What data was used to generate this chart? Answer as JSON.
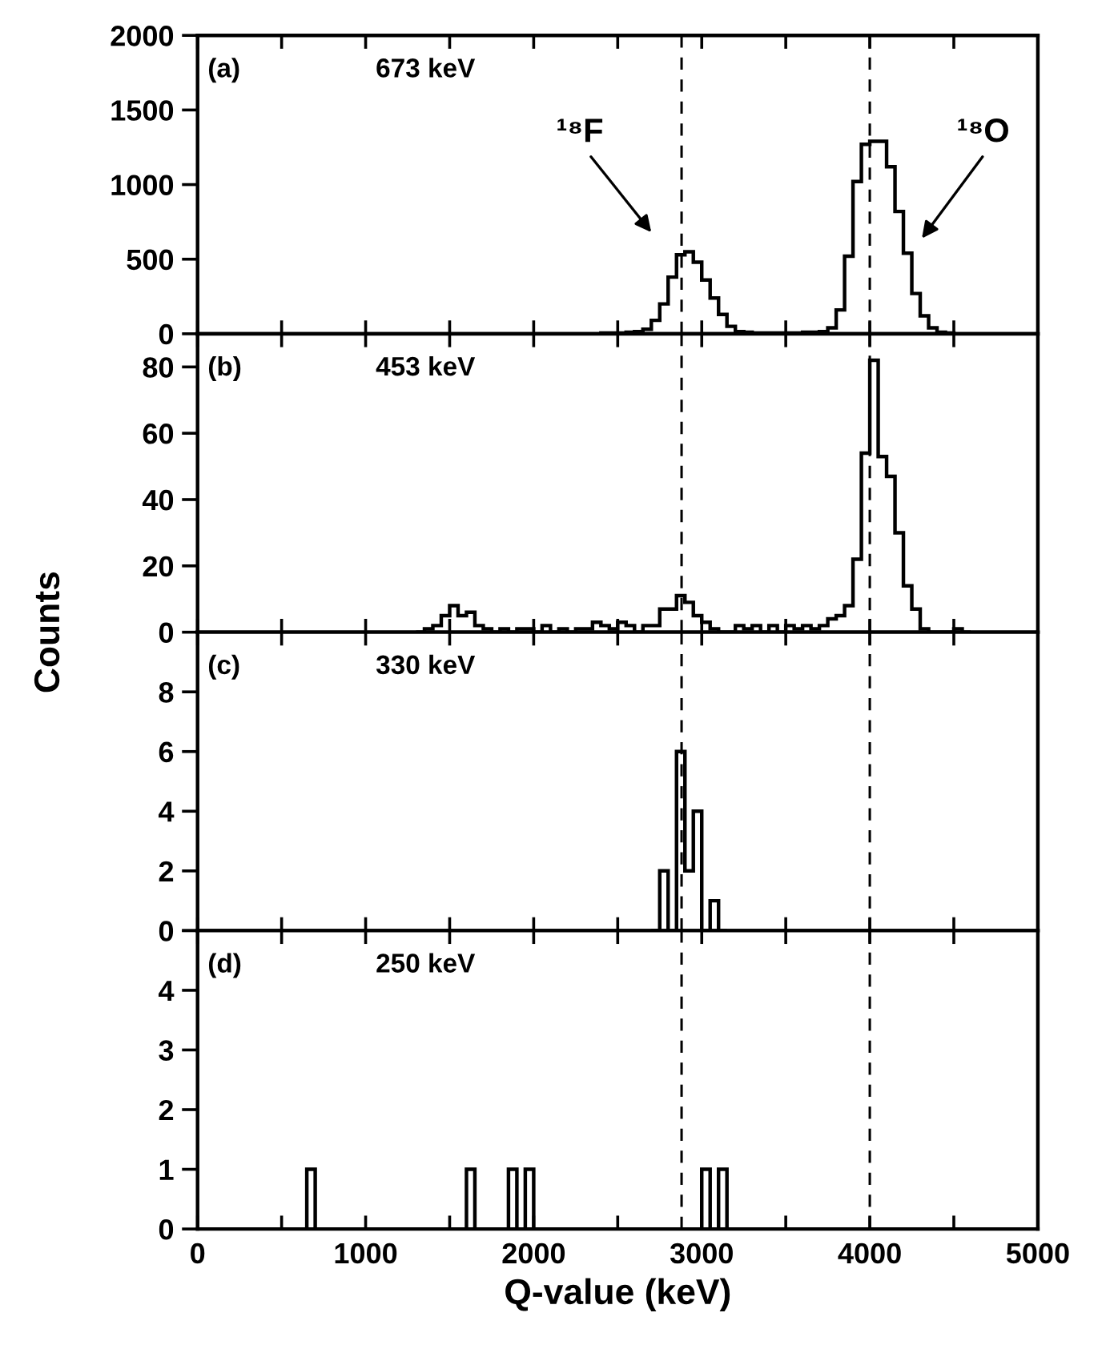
{
  "chart_data": [
    {
      "type": "histogram",
      "annotations": [
        "(a)",
        "673 keV",
        "¹⁸F",
        "¹⁸O"
      ],
      "bins": [
        2400,
        2450,
        2500,
        2550,
        2600,
        2650,
        2700,
        2750,
        2800,
        2850,
        2900,
        2950,
        3000,
        3050,
        3100,
        3150,
        3200,
        3250,
        3300,
        3350,
        3400,
        3450,
        3500,
        3550,
        3600,
        3650,
        3700,
        3750,
        3800,
        3850,
        3900,
        3950,
        4000,
        4050,
        4100,
        4150,
        4200,
        4250,
        4300,
        4350,
        4400,
        4450,
        4500
      ],
      "values": [
        5,
        5,
        5,
        10,
        15,
        30,
        90,
        200,
        380,
        530,
        550,
        480,
        360,
        240,
        130,
        50,
        15,
        10,
        5,
        5,
        5,
        5,
        5,
        5,
        10,
        10,
        15,
        40,
        160,
        520,
        1020,
        1270,
        1290,
        1290,
        1120,
        820,
        540,
        270,
        120,
        40,
        10,
        5
      ],
      "color": "#000000",
      "xlim": [
        0,
        5000
      ],
      "xticks": [
        0,
        {
          "value": 500,
          "label": null
        },
        1000,
        {
          "value": 1500,
          "label": null
        },
        2000,
        {
          "value": 2500,
          "label": null
        },
        3000,
        {
          "value": 3500,
          "label": null
        },
        4000,
        {
          "value": 4500,
          "label": null
        },
        5000
      ],
      "ylim": [
        0,
        2000
      ],
      "yticks": [
        0,
        500,
        1000,
        1500,
        2000
      ],
      "tick_labels": "y",
      "ref_lines": [
        {
          "axis": "x",
          "value": 2880,
          "line_style": "dashed"
        },
        {
          "axis": "x",
          "value": 4000,
          "line_style": "dashed"
        }
      ]
    },
    {
      "type": "histogram",
      "annotations": [
        "(b)",
        "453 keV"
      ],
      "bins": [
        1300,
        1350,
        1400,
        1450,
        1500,
        1550,
        1600,
        1650,
        1700,
        1750,
        1800,
        1850,
        1900,
        1950,
        2000,
        2050,
        2100,
        2150,
        2200,
        2250,
        2300,
        2350,
        2400,
        2450,
        2500,
        2550,
        2600,
        2650,
        2700,
        2750,
        2800,
        2850,
        2900,
        2950,
        3000,
        3050,
        3100,
        3150,
        3200,
        3250,
        3300,
        3350,
        3400,
        3450,
        3500,
        3550,
        3600,
        3650,
        3700,
        3750,
        3800,
        3850,
        3900,
        3950,
        4000,
        4050,
        4100,
        4150,
        4200,
        4250,
        4300,
        4350,
        4400,
        4450,
        4500,
        4550,
        4600
      ],
      "values": [
        0,
        1,
        2,
        5,
        8,
        5,
        6,
        2,
        1,
        0,
        1,
        0,
        1,
        1,
        0,
        2,
        0,
        1,
        0,
        1,
        1,
        3,
        2,
        1,
        3,
        2,
        0,
        2,
        2,
        7,
        7,
        11,
        9,
        5,
        3,
        1,
        0,
        0,
        2,
        1,
        2,
        0,
        2,
        0,
        2,
        1,
        2,
        1,
        2,
        4,
        5,
        8,
        22,
        54,
        82,
        53,
        47,
        30,
        14,
        7,
        1,
        0,
        0,
        0,
        1,
        0
      ],
      "color": "#000000",
      "xlim": [
        0,
        5000
      ],
      "xticks": [
        0,
        {
          "value": 500,
          "label": null
        },
        1000,
        {
          "value": 1500,
          "label": null
        },
        2000,
        {
          "value": 2500,
          "label": null
        },
        3000,
        {
          "value": 3500,
          "label": null
        },
        4000,
        {
          "value": 4500,
          "label": null
        },
        5000
      ],
      "ylim": [
        0,
        90
      ],
      "yticks": [
        0,
        20,
        40,
        60,
        80
      ],
      "tick_labels": "y",
      "ref_lines": [
        {
          "axis": "x",
          "value": 2880,
          "line_style": "dashed"
        },
        {
          "axis": "x",
          "value": 4000,
          "line_style": "dashed"
        }
      ]
    },
    {
      "type": "histogram",
      "ylabel": "Counts",
      "annotations": [
        "(c)",
        "330 keV"
      ],
      "bins": [
        2700,
        2750,
        2800,
        2850,
        2900,
        2950,
        3000,
        3050,
        3100,
        3150
      ],
      "values": [
        0,
        2,
        0,
        6,
        2,
        4,
        0,
        1,
        0
      ],
      "color": "#000000",
      "xlim": [
        0,
        5000
      ],
      "xticks": [
        0,
        {
          "value": 500,
          "label": null
        },
        1000,
        {
          "value": 1500,
          "label": null
        },
        2000,
        {
          "value": 2500,
          "label": null
        },
        3000,
        {
          "value": 3500,
          "label": null
        },
        4000,
        {
          "value": 4500,
          "label": null
        },
        5000
      ],
      "ylim": [
        0,
        10
      ],
      "yticks": [
        0,
        2,
        4,
        6,
        8
      ],
      "tick_labels": "y",
      "ref_lines": [
        {
          "axis": "x",
          "value": 2880,
          "line_style": "dashed"
        },
        {
          "axis": "x",
          "value": 4000,
          "line_style": "dashed"
        }
      ]
    },
    {
      "type": "histogram",
      "xlabel": "Q-value (keV)",
      "annotations": [
        "(d)",
        "250 keV"
      ],
      "bins": [
        600,
        650,
        700,
        750,
        800,
        850,
        900,
        950,
        1000,
        1050,
        1100,
        1150,
        1200,
        1250,
        1300,
        1350,
        1400,
        1450,
        1500,
        1550,
        1600,
        1650,
        1700,
        1750,
        1800,
        1850,
        1900,
        1950,
        2000,
        2050,
        2100,
        2150,
        2200,
        2250,
        2300,
        2350,
        2400,
        2450,
        2500,
        2550,
        2600,
        2650,
        2700,
        2750,
        2800,
        2850,
        2900,
        2950,
        3000,
        3050,
        3100,
        3150,
        3200
      ],
      "values": [
        0,
        1,
        0,
        0,
        0,
        0,
        0,
        0,
        0,
        0,
        0,
        0,
        0,
        0,
        0,
        0,
        0,
        0,
        0,
        0,
        1,
        0,
        0,
        0,
        0,
        1,
        0,
        1,
        0,
        0,
        0,
        0,
        0,
        0,
        0,
        0,
        0,
        0,
        0,
        0,
        0,
        0,
        0,
        0,
        0,
        0,
        0,
        0,
        1,
        0,
        1,
        0
      ],
      "color": "#000000",
      "xlim": [
        0,
        5000
      ],
      "xticks": [
        0,
        {
          "value": 500,
          "label": null
        },
        1000,
        {
          "value": 1500,
          "label": null
        },
        2000,
        {
          "value": 2500,
          "label": null
        },
        3000,
        {
          "value": 3500,
          "label": null
        },
        4000,
        {
          "value": 4500,
          "label": null
        },
        5000
      ],
      "ylim": [
        0,
        5
      ],
      "yticks": [
        0,
        1,
        2,
        3,
        4,
        {
          "value": 5,
          "label": null
        }
      ],
      "ref_lines": [
        {
          "axis": "x",
          "value": 2880,
          "line_style": "dashed"
        },
        {
          "axis": "x",
          "value": 4000,
          "line_style": "dashed"
        }
      ]
    }
  ]
}
